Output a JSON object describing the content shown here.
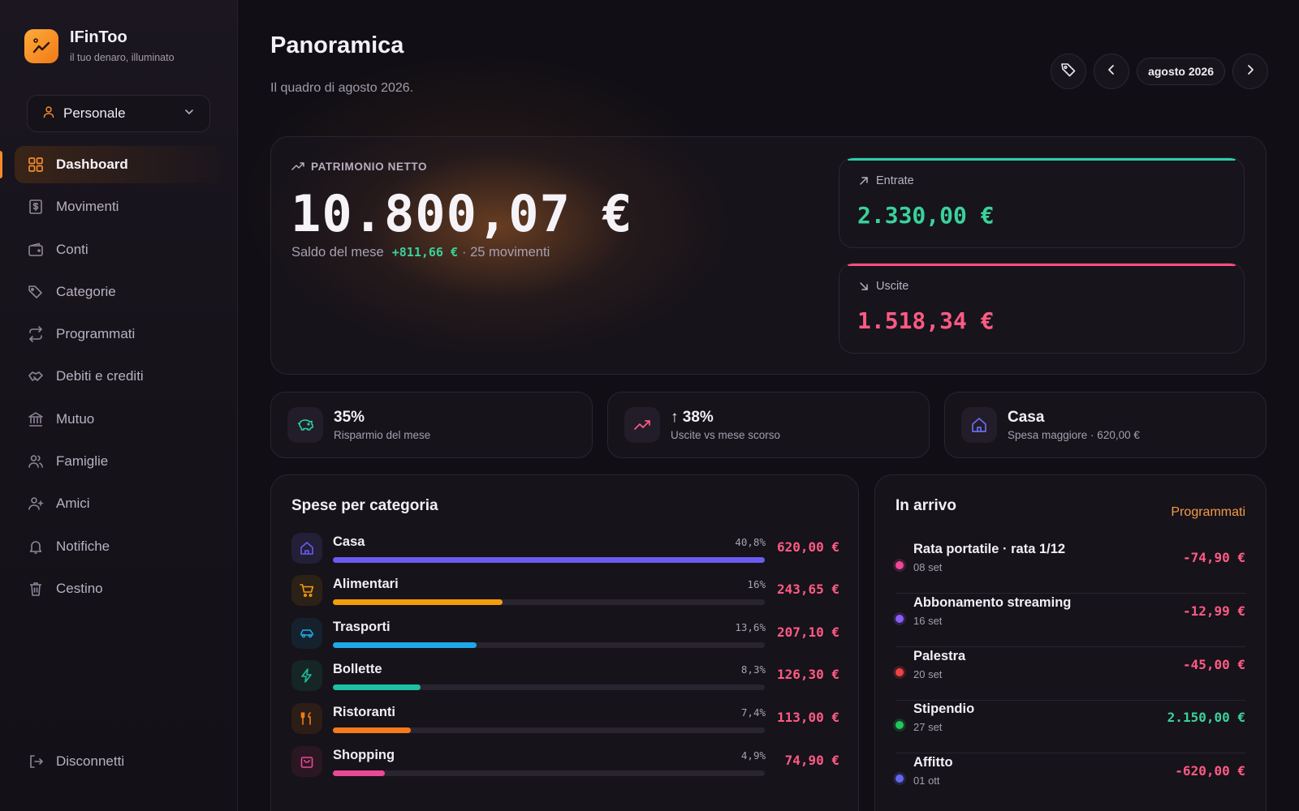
{
  "brand": {
    "name": "IFinToo",
    "tagline": "il tuo denaro, illuminato"
  },
  "workspace": {
    "label": "Personale"
  },
  "nav": {
    "items": [
      {
        "label": "Dashboard",
        "icon": "grid-icon",
        "active": true
      },
      {
        "label": "Movimenti",
        "icon": "receipt-icon"
      },
      {
        "label": "Conti",
        "icon": "wallet-icon"
      },
      {
        "label": "Categorie",
        "icon": "tags-icon"
      },
      {
        "label": "Programmati",
        "icon": "repeat-icon"
      },
      {
        "label": "Debiti e crediti",
        "icon": "handshake-icon"
      },
      {
        "label": "Mutuo",
        "icon": "bank-icon"
      },
      {
        "label": "Famiglie",
        "icon": "users-icon"
      },
      {
        "label": "Amici",
        "icon": "user-plus-icon"
      },
      {
        "label": "Notifiche",
        "icon": "bell-icon"
      },
      {
        "label": "Cestino",
        "icon": "trash-icon"
      }
    ],
    "logout": "Disconnetti"
  },
  "header": {
    "title": "Panoramica",
    "subtitle": "Il quadro di agosto 2026.",
    "month": "agosto 2026"
  },
  "net_worth": {
    "label": "PATRIMONIO NETTO",
    "amount": "10.800,07 €",
    "month_balance_label": "Saldo del mese",
    "month_balance": "+811,66 €",
    "movements": "· 25 movimenti"
  },
  "income": {
    "label": "Entrate",
    "value": "2.330,00 €"
  },
  "expenses": {
    "label": "Uscite",
    "value": "1.518,34 €"
  },
  "stats": [
    {
      "value": "35%",
      "caption": "Risparmio del mese",
      "icon": "piggy-bank-icon"
    },
    {
      "value": "↑ 38%",
      "caption": "Uscite vs mese scorso",
      "icon": "trending-up-icon"
    },
    {
      "value": "Casa",
      "caption": "Spesa maggiore · 620,00 €",
      "icon": "home-icon"
    }
  ],
  "categories": {
    "title": "Spese per categoria",
    "items": [
      {
        "name": "Casa",
        "pct": "40,8%",
        "share": 0.408,
        "amount": "620,00 €",
        "color": "#6a5cf0",
        "bg": "#221f36",
        "icon": "home-icon"
      },
      {
        "name": "Alimentari",
        "pct": "16%",
        "share": 0.16,
        "amount": "243,65 €",
        "color": "#f59e0b",
        "bg": "#2c2116",
        "icon": "cart-icon"
      },
      {
        "name": "Trasporti",
        "pct": "13,6%",
        "share": 0.136,
        "amount": "207,10 €",
        "color": "#1fa9e8",
        "bg": "#15222e",
        "icon": "car-icon"
      },
      {
        "name": "Bollette",
        "pct": "8,3%",
        "share": 0.083,
        "amount": "126,30 €",
        "color": "#1fbfa3",
        "bg": "#152624",
        "icon": "bolt-icon"
      },
      {
        "name": "Ristoranti",
        "pct": "7,4%",
        "share": 0.074,
        "amount": "113,00 €",
        "color": "#f47a1a",
        "bg": "#2c1d16",
        "icon": "utensils-icon"
      },
      {
        "name": "Shopping",
        "pct": "4,9%",
        "share": 0.049,
        "amount": "74,90 €",
        "color": "#ec4899",
        "bg": "#2a1722",
        "icon": "bag-icon"
      }
    ]
  },
  "upcoming": {
    "title": "In arrivo",
    "link": "Programmati",
    "items": [
      {
        "title": "Rata portatile · rata 1/12",
        "date": "08 set",
        "amount": "-74,90 €",
        "dot": "#ec4899",
        "positive": false
      },
      {
        "title": "Abbonamento streaming",
        "date": "16 set",
        "amount": "-12,99 €",
        "dot": "#8b5cf6",
        "positive": false
      },
      {
        "title": "Palestra",
        "date": "20 set",
        "amount": "-45,00 €",
        "dot": "#ef4444",
        "positive": false
      },
      {
        "title": "Stipendio",
        "date": "27 set",
        "amount": "2.150,00 €",
        "dot": "#22c55e",
        "positive": true
      },
      {
        "title": "Affitto",
        "date": "01 ott",
        "amount": "-620,00 €",
        "dot": "#6366f1",
        "positive": false
      }
    ]
  },
  "colors": {
    "accent": "#f58a2b",
    "positive": "#3ad29a",
    "negative": "#ff5a84",
    "income_bar": "#2ad1a8",
    "expense_bar": "#ff4f7b"
  }
}
